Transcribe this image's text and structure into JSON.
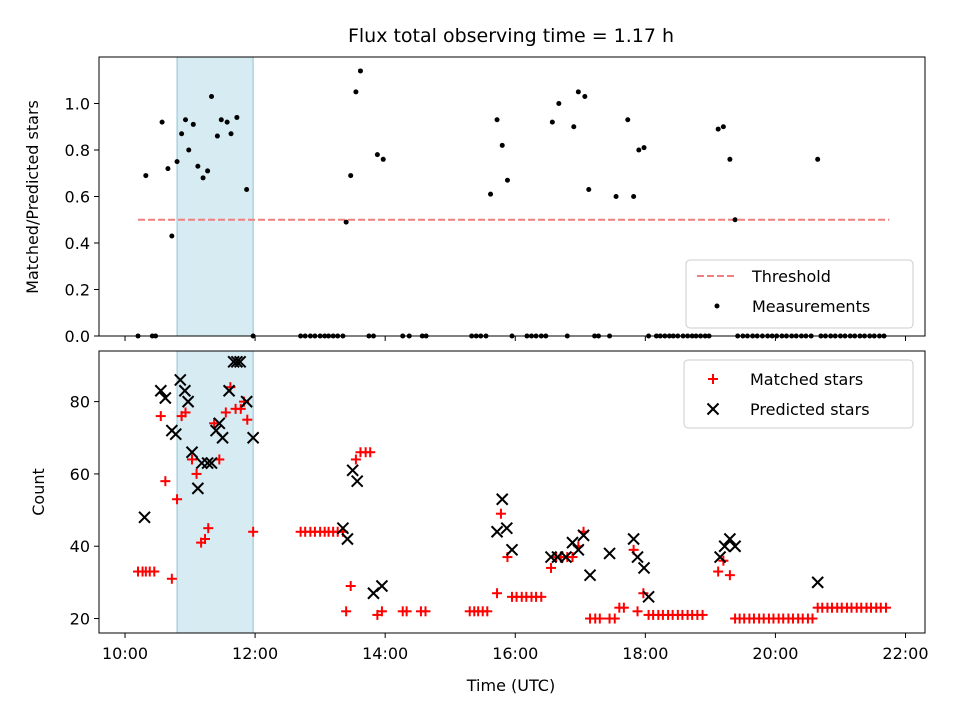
{
  "chart_data": {
    "title": "Flux total observing time = 1.17 h",
    "xlabel": "Time (UTC)",
    "x_ticks": [
      "10:00",
      "12:00",
      "14:00",
      "16:00",
      "18:00",
      "20:00",
      "22:00"
    ],
    "x_range_hours": [
      9.6,
      22.3
    ],
    "shaded_span_hours": [
      10.8,
      11.97
    ],
    "shaded_color": "#add8e6",
    "panels": [
      {
        "type": "scatter",
        "ylabel": "Matched/Predicted stars",
        "ylim": [
          0,
          1.2
        ],
        "y_ticks": [
          "0.0",
          "0.2",
          "0.4",
          "0.6",
          "0.8",
          "1.0"
        ],
        "legend": "bottom-right",
        "threshold": {
          "name": "Threshold",
          "value": 0.5,
          "x_range": [
            10.2,
            21.75
          ],
          "color": "#f08080"
        },
        "series": [
          {
            "name": "Measurements",
            "color": "#000000",
            "marker": "dot",
            "x": [
              10.2,
              10.32,
              10.42,
              10.47,
              10.57,
              10.66,
              10.72,
              10.8,
              10.87,
              10.93,
              10.98,
              11.05,
              11.12,
              11.2,
              11.27,
              11.33,
              11.42,
              11.48,
              11.57,
              11.63,
              11.72,
              11.87,
              11.97,
              12.7,
              12.77,
              12.85,
              12.92,
              13.0,
              13.07,
              13.13,
              13.2,
              13.27,
              13.35,
              13.4,
              13.47,
              13.55,
              13.62,
              13.75,
              13.82,
              13.88,
              13.97,
              14.27,
              14.37,
              14.57,
              14.63,
              15.33,
              15.4,
              15.47,
              15.55,
              15.62,
              15.72,
              15.8,
              15.88,
              15.95,
              16.18,
              16.25,
              16.32,
              16.4,
              16.47,
              16.57,
              16.67,
              16.8,
              16.9,
              16.97,
              17.07,
              17.13,
              17.22,
              17.28,
              17.45,
              17.55,
              17.73,
              17.82,
              17.9,
              17.98,
              18.05,
              18.17,
              18.23,
              18.3,
              18.37,
              18.43,
              18.5,
              18.58,
              18.65,
              18.72,
              18.78,
              18.85,
              18.92,
              18.98,
              19.12,
              19.2,
              19.3,
              19.38,
              19.42,
              19.5,
              19.57,
              19.65,
              19.72,
              19.8,
              19.88,
              19.95,
              20.02,
              20.1,
              20.17,
              20.25,
              20.32,
              20.4,
              20.47,
              20.55,
              20.65,
              20.7,
              20.77,
              20.85,
              20.92,
              21.0,
              21.07,
              21.15,
              21.22,
              21.3,
              21.37,
              21.45,
              21.52,
              21.6,
              21.67
            ],
            "y": [
              0,
              0.69,
              0,
              0,
              0.92,
              0.72,
              0.43,
              0.75,
              0.87,
              0.93,
              0.8,
              0.91,
              0.73,
              0.68,
              0.71,
              1.03,
              0.86,
              0.93,
              0.92,
              0.87,
              0.94,
              0.63,
              0,
              0,
              0,
              0,
              0,
              0,
              0,
              0,
              0,
              0,
              0,
              0.49,
              0.69,
              1.05,
              1.14,
              0,
              0,
              0.78,
              0.76,
              0,
              0,
              0,
              0,
              0,
              0,
              0,
              0,
              0.61,
              0.93,
              0.82,
              0.67,
              0,
              0,
              0,
              0,
              0,
              0,
              0.92,
              1.0,
              0,
              0.9,
              1.05,
              1.03,
              0.63,
              0,
              0,
              0,
              0.6,
              0.93,
              0.6,
              0.8,
              0.81,
              0,
              0,
              0,
              0,
              0,
              0,
              0,
              0,
              0,
              0,
              0,
              0,
              0,
              0,
              0.89,
              0.9,
              0.76,
              0.5,
              0,
              0,
              0,
              0,
              0,
              0,
              0,
              0,
              0,
              0,
              0,
              0,
              0,
              0,
              0,
              0,
              0.76,
              0,
              0,
              0,
              0,
              0,
              0,
              0,
              0,
              0,
              0,
              0,
              0,
              0,
              0
            ]
          }
        ]
      },
      {
        "type": "scatter",
        "ylabel": "Count",
        "ylim": [
          16,
          94
        ],
        "y_ticks": [
          "20",
          "40",
          "60",
          "80"
        ],
        "legend": "top-right",
        "series": [
          {
            "name": "Matched stars",
            "color": "#ff0000",
            "marker": "plus",
            "x": [
              10.2,
              10.27,
              10.32,
              10.38,
              10.45,
              10.55,
              10.62,
              10.72,
              10.8,
              10.87,
              10.93,
              11.03,
              11.1,
              11.17,
              11.23,
              11.28,
              11.37,
              11.45,
              11.55,
              11.62,
              11.7,
              11.78,
              11.83,
              11.88,
              11.97,
              12.7,
              12.77,
              12.85,
              12.92,
              13.0,
              13.07,
              13.13,
              13.2,
              13.27,
              13.35,
              13.4,
              13.47,
              13.55,
              13.62,
              13.7,
              13.77,
              13.88,
              13.95,
              14.27,
              14.33,
              14.55,
              14.62,
              15.3,
              15.37,
              15.43,
              15.5,
              15.57,
              15.72,
              15.78,
              15.88,
              15.95,
              16.02,
              16.1,
              16.17,
              16.25,
              16.32,
              16.4,
              16.55,
              16.63,
              16.7,
              16.8,
              16.88,
              16.97,
              17.05,
              17.15,
              17.23,
              17.3,
              17.45,
              17.53,
              17.6,
              17.67,
              17.82,
              17.88,
              17.97,
              18.05,
              18.12,
              18.2,
              18.27,
              18.35,
              18.42,
              18.5,
              18.57,
              18.65,
              18.72,
              18.8,
              18.88,
              19.12,
              19.2,
              19.3,
              19.38,
              19.45,
              19.52,
              19.6,
              19.67,
              19.75,
              19.82,
              19.9,
              19.97,
              20.05,
              20.12,
              20.2,
              20.27,
              20.35,
              20.42,
              20.5,
              20.57,
              20.65,
              20.72,
              20.8,
              20.87,
              20.95,
              21.02,
              21.1,
              21.17,
              21.25,
              21.32,
              21.4,
              21.47,
              21.55,
              21.62,
              21.7
            ],
            "y": [
              33,
              33,
              33,
              33,
              33,
              76,
              58,
              31,
              53,
              76,
              77,
              64,
              60,
              41,
              42,
              45,
              74,
              64,
              77,
              84,
              78,
              78,
              80,
              75,
              44,
              44,
              44,
              44,
              44,
              44,
              44,
              44,
              44,
              44,
              44,
              22,
              29,
              64,
              66,
              66,
              66,
              21,
              22,
              22,
              22,
              22,
              22,
              22,
              22,
              22,
              22,
              22,
              27,
              49,
              37,
              26,
              26,
              26,
              26,
              26,
              26,
              26,
              34,
              37,
              37,
              37,
              37,
              40,
              44,
              20,
              20,
              20,
              20,
              20,
              23,
              23,
              39,
              22,
              27,
              21,
              21,
              21,
              21,
              21,
              21,
              21,
              21,
              21,
              21,
              21,
              21,
              33,
              36,
              32,
              20,
              20,
              20,
              20,
              20,
              20,
              20,
              20,
              20,
              20,
              20,
              20,
              20,
              20,
              20,
              20,
              20,
              23,
              23,
              23,
              23,
              23,
              23,
              23,
              23,
              23,
              23,
              23,
              23,
              23,
              23,
              23
            ]
          },
          {
            "name": "Predicted stars",
            "color": "#000000",
            "marker": "x",
            "x": [
              10.3,
              10.55,
              10.62,
              10.72,
              10.78,
              10.85,
              10.92,
              10.97,
              11.03,
              11.12,
              11.18,
              11.27,
              11.33,
              11.4,
              11.45,
              11.5,
              11.6,
              11.67,
              11.72,
              11.77,
              11.87,
              11.97,
              13.35,
              13.42,
              13.5,
              13.57,
              13.82,
              13.95,
              15.72,
              15.8,
              15.87,
              15.95,
              16.55,
              16.65,
              16.78,
              16.88,
              16.97,
              17.05,
              17.15,
              17.45,
              17.82,
              17.88,
              17.98,
              18.05,
              19.15,
              19.22,
              19.3,
              19.38,
              20.65
            ],
            "y": [
              48,
              83,
              81,
              72,
              71,
              86,
              83,
              80,
              66,
              56,
              63,
              63,
              63,
              72,
              74,
              70,
              83,
              91,
              91,
              91,
              80,
              70,
              45,
              42,
              61,
              58,
              27,
              29,
              44,
              53,
              45,
              39,
              37,
              37,
              37,
              41,
              39,
              43,
              32,
              38,
              42,
              37,
              34,
              26,
              37,
              40,
              42,
              40,
              30
            ]
          }
        ]
      }
    ]
  }
}
